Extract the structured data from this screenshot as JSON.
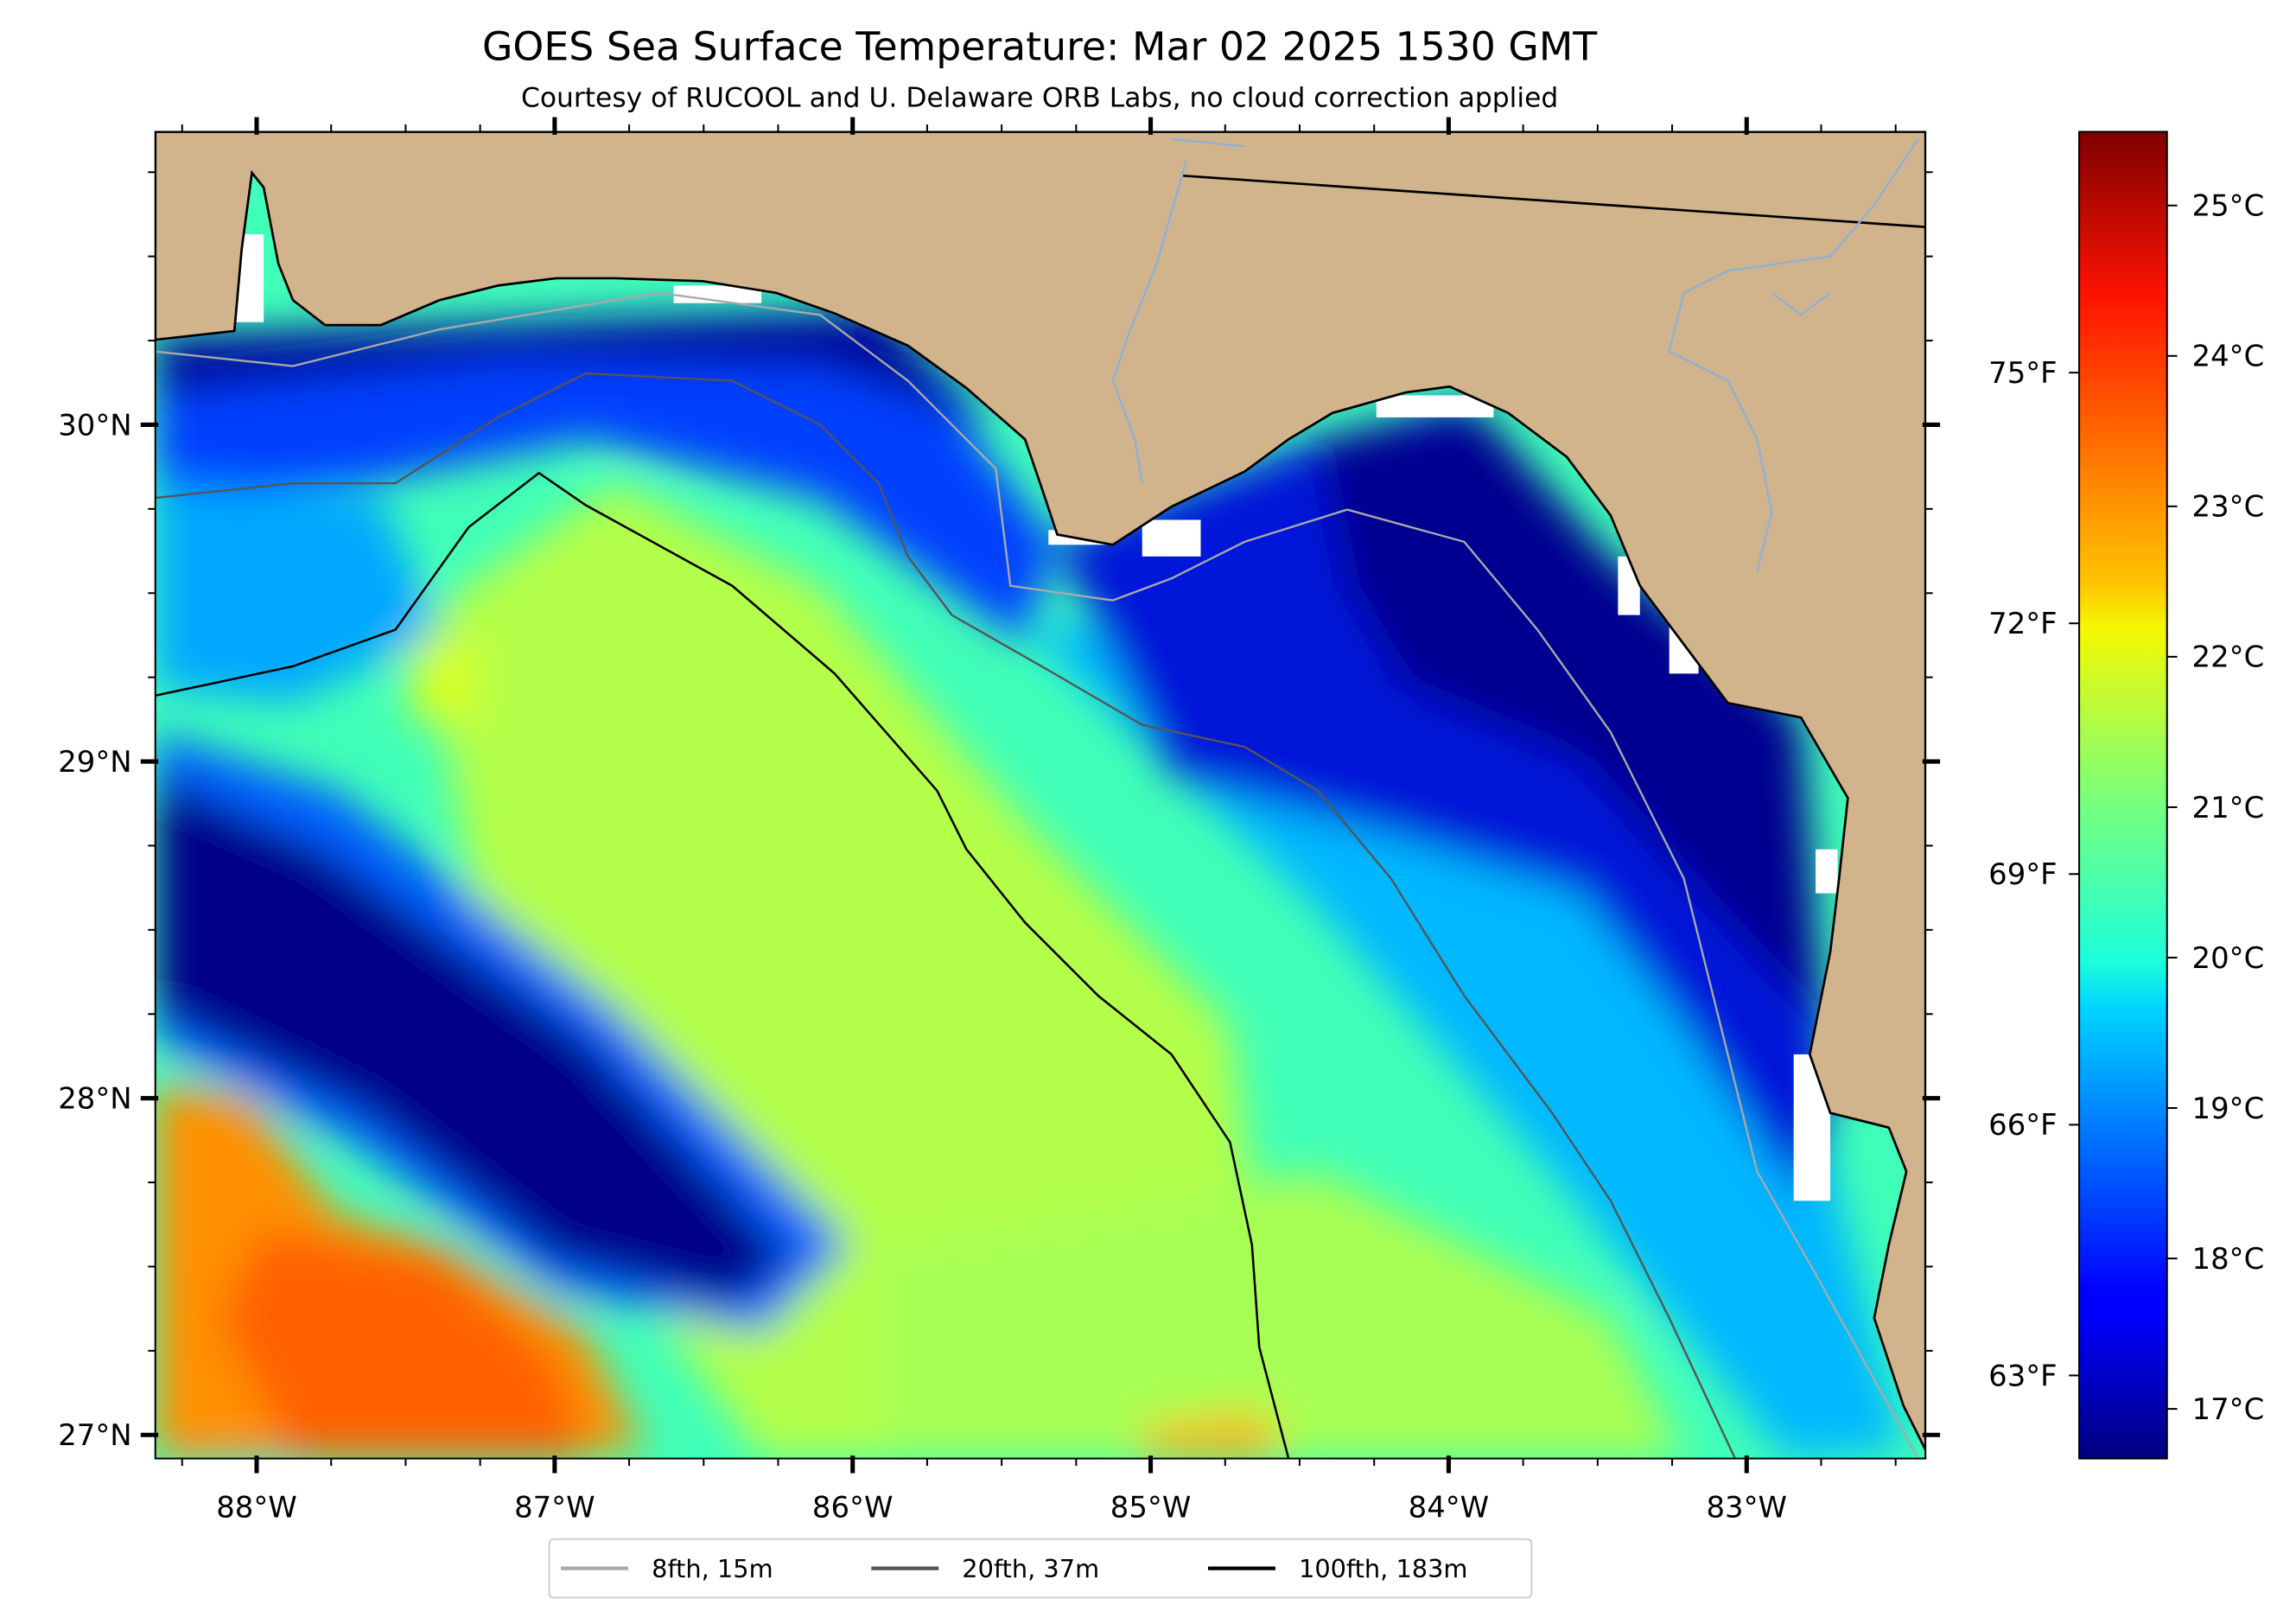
{
  "title": "GOES Sea Surface Temperature: Mar 02 2025 1530 GMT",
  "subtitle": "Courtesy of RUCOOL and U. Delaware ORB Labs, no cloud correction applied",
  "map": {
    "lon_range": [
      -88.34,
      -82.4
    ],
    "lat_range": [
      26.93,
      30.87
    ],
    "land_color": "#d2b48c",
    "x_ticks": [
      {
        "value": -88,
        "label": "88°W"
      },
      {
        "value": -87,
        "label": "87°W"
      },
      {
        "value": -86,
        "label": "86°W"
      },
      {
        "value": -85,
        "label": "85°W"
      },
      {
        "value": -84,
        "label": "84°W"
      },
      {
        "value": -83,
        "label": "83°W"
      }
    ],
    "y_ticks": [
      {
        "value": 30,
        "label": "30°N"
      },
      {
        "value": 29,
        "label": "29°N"
      },
      {
        "value": 28,
        "label": "28°N"
      },
      {
        "value": 27,
        "label": "27°N"
      }
    ]
  },
  "colorbar": {
    "colormap": "jet",
    "range_c": [
      16.67,
      25.49
    ],
    "celsius_ticks": [
      {
        "value": 17,
        "label": "17°C"
      },
      {
        "value": 18,
        "label": "18°C"
      },
      {
        "value": 19,
        "label": "19°C"
      },
      {
        "value": 20,
        "label": "20°C"
      },
      {
        "value": 21,
        "label": "21°C"
      },
      {
        "value": 22,
        "label": "22°C"
      },
      {
        "value": 23,
        "label": "23°C"
      },
      {
        "value": 24,
        "label": "24°C"
      },
      {
        "value": 25,
        "label": "25°C"
      }
    ],
    "fahrenheit_ticks": [
      {
        "value": 63,
        "label": "63°F"
      },
      {
        "value": 66,
        "label": "66°F"
      },
      {
        "value": 69,
        "label": "69°F"
      },
      {
        "value": 72,
        "label": "72°F"
      },
      {
        "value": 75,
        "label": "75°F"
      }
    ]
  },
  "legend": [
    {
      "label": "8fth, 15m",
      "color": "#a9a9a9"
    },
    {
      "label": "20fth, 37m",
      "color": "#555555"
    },
    {
      "label": "100fth, 183m",
      "color": "#000000"
    }
  ]
}
